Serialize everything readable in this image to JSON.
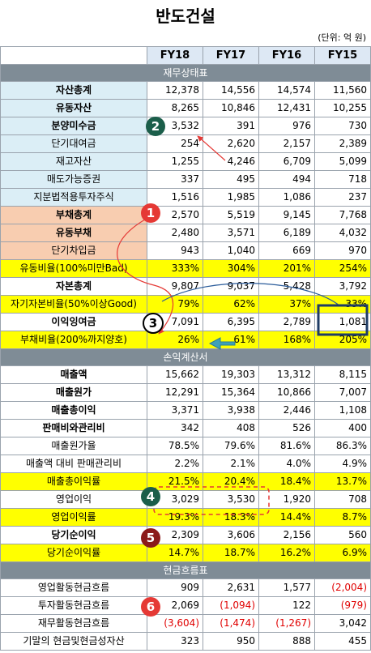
{
  "title": "반도건설",
  "unit": "(단위: 억 원)",
  "years": [
    "FY18",
    "FY17",
    "FY16",
    "FY15"
  ],
  "sections": {
    "balance": "재무상태표",
    "income": "손익계산서",
    "cashflow": "현금흐름표"
  },
  "rows": [
    {
      "label": "자산총계",
      "values": [
        "12,378",
        "14,556",
        "14,574",
        "11,560"
      ]
    },
    {
      "label": "유동자산",
      "values": [
        "8,265",
        "10,846",
        "12,431",
        "10,255"
      ]
    },
    {
      "label": "분양미수금",
      "values": [
        "3,532",
        "391",
        "976",
        "730"
      ]
    },
    {
      "label": "단기대여금",
      "values": [
        "254",
        "2,620",
        "2,157",
        "2,389"
      ]
    },
    {
      "label": "재고자산",
      "values": [
        "1,255",
        "4,246",
        "6,709",
        "5,099"
      ]
    },
    {
      "label": "매도가능증권",
      "values": [
        "337",
        "495",
        "494",
        "718"
      ]
    },
    {
      "label": "지분법적용투자주식",
      "values": [
        "1,516",
        "1,985",
        "1,086",
        "237"
      ]
    },
    {
      "label": "부채총계",
      "values": [
        "2,570",
        "5,519",
        "9,145",
        "7,768"
      ]
    },
    {
      "label": "유동부채",
      "values": [
        "2,480",
        "3,571",
        "6,189",
        "4,032"
      ]
    },
    {
      "label": "단기차입금",
      "values": [
        "943",
        "1,040",
        "669",
        "970"
      ]
    },
    {
      "label": "유동비율(100%미만Bad)",
      "values": [
        "333%",
        "304%",
        "201%",
        "254%"
      ]
    },
    {
      "label": "자본총계",
      "values": [
        "9,807",
        "9,037",
        "5,428",
        "3,792"
      ]
    },
    {
      "label": "자기자본비율(50%이상Good)",
      "values": [
        "79%",
        "62%",
        "37%",
        "33%"
      ]
    },
    {
      "label": "이익잉여금",
      "values": [
        "7,091",
        "6,395",
        "2,789",
        "1,081"
      ]
    },
    {
      "label": "부채비율(200%까지양호)",
      "values": [
        "26%",
        "61%",
        "168%",
        "205%"
      ]
    },
    {
      "label": "매출액",
      "values": [
        "15,662",
        "19,303",
        "13,312",
        "8,115"
      ]
    },
    {
      "label": "매출원가",
      "values": [
        "12,291",
        "15,364",
        "10,866",
        "7,007"
      ]
    },
    {
      "label": "매출총이익",
      "values": [
        "3,371",
        "3,938",
        "2,446",
        "1,108"
      ]
    },
    {
      "label": "판매비와관리비",
      "values": [
        "342",
        "408",
        "526",
        "400"
      ]
    },
    {
      "label": "매출원가율",
      "values": [
        "78.5%",
        "79.6%",
        "81.6%",
        "86.3%"
      ]
    },
    {
      "label": "매출액 대비 판매관리비",
      "values": [
        "2.2%",
        "2.1%",
        "4.0%",
        "4.9%"
      ]
    },
    {
      "label": "매출총이익률",
      "values": [
        "21.5%",
        "20.4%",
        "18.4%",
        "13.7%"
      ]
    },
    {
      "label": "영업이익",
      "values": [
        "3,029",
        "3,530",
        "1,920",
        "708"
      ]
    },
    {
      "label": "영업이익률",
      "values": [
        "19.3%",
        "18.3%",
        "14.4%",
        "8.7%"
      ]
    },
    {
      "label": "당기순이익",
      "values": [
        "2,309",
        "3,606",
        "2,156",
        "560"
      ]
    },
    {
      "label": "당기순이익률",
      "values": [
        "14.7%",
        "18.7%",
        "16.2%",
        "6.9%"
      ]
    },
    {
      "label": "영업활동현금흐름",
      "values": [
        "909",
        "2,631",
        "1,577",
        "(2,004)"
      ]
    },
    {
      "label": "투자활동현금흐름",
      "values": [
        "2,069",
        "(1,094)",
        "122",
        "(979)"
      ]
    },
    {
      "label": "재무활동현금흐름",
      "values": [
        "(3,604)",
        "(1,474)",
        "(1,267)",
        "3,042"
      ]
    },
    {
      "label": "기말의 현금및현금성자산",
      "values": [
        "323",
        "950",
        "888",
        "455"
      ]
    }
  ],
  "annotations": {
    "badge_1": "1",
    "badge_2": "2",
    "badge_3": "3",
    "badge_4": "4",
    "badge_5": "5",
    "badge_6": "6"
  },
  "colors": {
    "header_bg": "#dde8f4",
    "section_bg": "#7f8c96",
    "asset_label_bg": "#dbeef6",
    "liability_label_bg": "#f8cdb0",
    "ratio_bg": "#ffff00",
    "negative": "#e00000"
  }
}
